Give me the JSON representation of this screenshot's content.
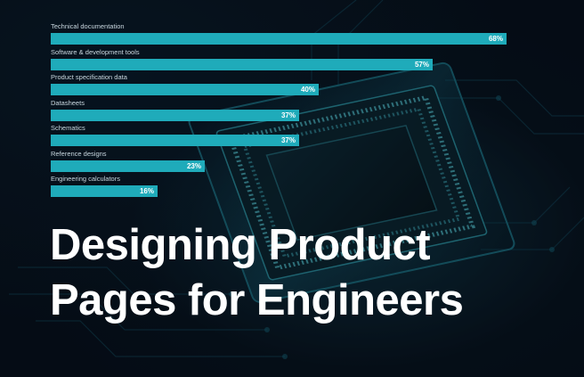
{
  "headline": {
    "line1": "Designing Product",
    "line2": "Pages for Engineers"
  },
  "colors": {
    "bar": "#1fabba",
    "background": "#060d16",
    "text": "#ffffff"
  },
  "chart_data": {
    "type": "bar",
    "orientation": "horizontal",
    "title": "",
    "xlabel": "",
    "ylabel": "",
    "xlim": [
      0,
      68
    ],
    "grid": false,
    "categories": [
      "Technical documentation",
      "Software & development tools",
      "Product specification data",
      "Datasheets",
      "Schematics",
      "Reference designs",
      "Engineering calculators"
    ],
    "values": [
      68,
      57,
      40,
      37,
      37,
      23,
      16
    ],
    "value_labels": [
      "68%",
      "57%",
      "40%",
      "37%",
      "37%",
      "23%",
      "16%"
    ]
  }
}
